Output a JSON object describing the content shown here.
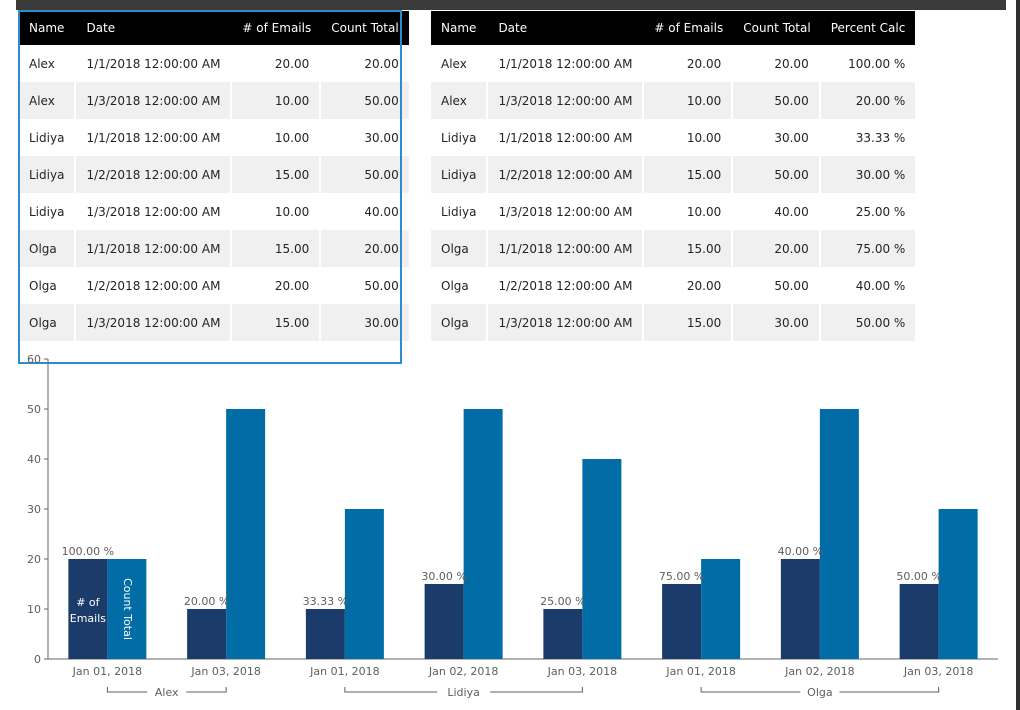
{
  "table1": {
    "columns": [
      "Name",
      "Date",
      "# of Emails",
      "Count Total"
    ],
    "rows": [
      [
        "Alex",
        "1/1/2018 12:00:00 AM",
        "20.00",
        "20.00"
      ],
      [
        "Alex",
        "1/3/2018 12:00:00 AM",
        "10.00",
        "50.00"
      ],
      [
        "Lidiya",
        "1/1/2018 12:00:00 AM",
        "10.00",
        "30.00"
      ],
      [
        "Lidiya",
        "1/2/2018 12:00:00 AM",
        "15.00",
        "50.00"
      ],
      [
        "Lidiya",
        "1/3/2018 12:00:00 AM",
        "10.00",
        "40.00"
      ],
      [
        "Olga",
        "1/1/2018 12:00:00 AM",
        "15.00",
        "20.00"
      ],
      [
        "Olga",
        "1/2/2018 12:00:00 AM",
        "20.00",
        "50.00"
      ],
      [
        "Olga",
        "1/3/2018 12:00:00 AM",
        "15.00",
        "30.00"
      ]
    ]
  },
  "table2": {
    "columns": [
      "Name",
      "Date",
      "# of Emails",
      "Count Total",
      "Percent Calc"
    ],
    "rows": [
      [
        "Alex",
        "1/1/2018 12:00:00 AM",
        "20.00",
        "20.00",
        "100.00 %"
      ],
      [
        "Alex",
        "1/3/2018 12:00:00 AM",
        "10.00",
        "50.00",
        "20.00 %"
      ],
      [
        "Lidiya",
        "1/1/2018 12:00:00 AM",
        "10.00",
        "30.00",
        "33.33 %"
      ],
      [
        "Lidiya",
        "1/2/2018 12:00:00 AM",
        "15.00",
        "50.00",
        "30.00 %"
      ],
      [
        "Lidiya",
        "1/3/2018 12:00:00 AM",
        "10.00",
        "40.00",
        "25.00 %"
      ],
      [
        "Olga",
        "1/1/2018 12:00:00 AM",
        "15.00",
        "20.00",
        "75.00 %"
      ],
      [
        "Olga",
        "1/2/2018 12:00:00 AM",
        "20.00",
        "50.00",
        "40.00 %"
      ],
      [
        "Olga",
        "1/3/2018 12:00:00 AM",
        "15.00",
        "30.00",
        "50.00 %"
      ]
    ]
  },
  "chart_data": {
    "type": "bar",
    "categories": [
      "Jan 01, 2018",
      "Jan 03, 2018",
      "Jan 01, 2018",
      "Jan 02, 2018",
      "Jan 03, 2018",
      "Jan 01, 2018",
      "Jan 02, 2018",
      "Jan 03, 2018"
    ],
    "groups": [
      {
        "name": "Alex",
        "count": 2
      },
      {
        "name": "Lidiya",
        "count": 3
      },
      {
        "name": "Olga",
        "count": 3
      }
    ],
    "series": [
      {
        "name": "# of Emails",
        "values": [
          20,
          10,
          10,
          15,
          10,
          15,
          20,
          15
        ],
        "color": "#1b3c6b"
      },
      {
        "name": "Count Total",
        "values": [
          20,
          50,
          30,
          50,
          40,
          20,
          50,
          30
        ],
        "color": "#016ca6"
      }
    ],
    "data_labels": [
      "100.00 %",
      "20.00 %",
      "33.33 %",
      "30.00 %",
      "25.00 %",
      "75.00 %",
      "40.00 %",
      "50.00 %"
    ],
    "ylim": [
      0,
      60
    ],
    "yticks": [
      "0",
      "10",
      "20",
      "30",
      "40",
      "50",
      "60"
    ],
    "grid": false
  },
  "colors": {
    "header_bg": "#000000",
    "alt_row": "#f0f0f0",
    "selection": "#2e8bcf"
  }
}
